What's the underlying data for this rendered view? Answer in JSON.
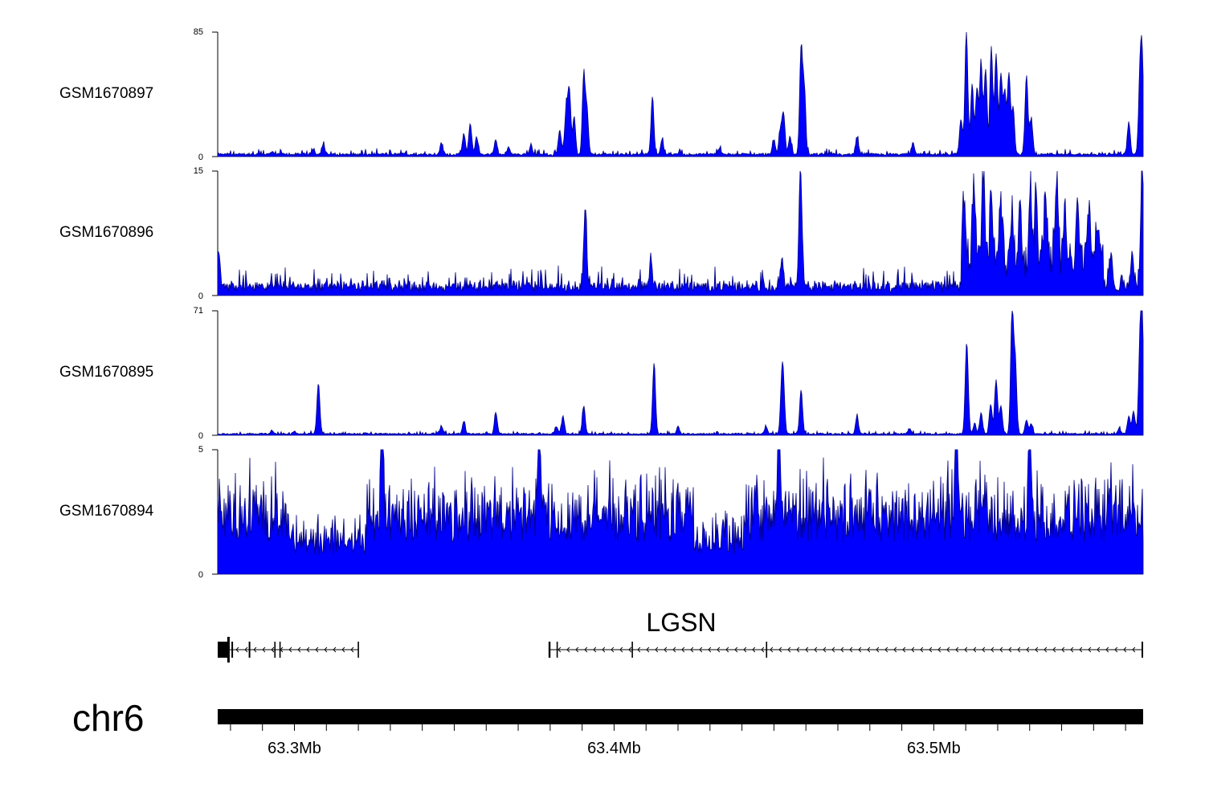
{
  "chart_data": {
    "type": "area",
    "chromosome": "chr6",
    "x_axis": {
      "range_mb": [
        63.276,
        63.5655
      ],
      "tick_labels": [
        {
          "value": 63.3,
          "label": "63.3Mb"
        },
        {
          "value": 63.4,
          "label": "63.4Mb"
        },
        {
          "value": 63.5,
          "label": "63.5Mb"
        }
      ],
      "minor_tick_step_mb": 0.01
    },
    "tracks": [
      {
        "name": "GSM1670897",
        "ylim": [
          0,
          85
        ],
        "ylim_labels": [
          "0",
          "85"
        ],
        "baseline": 1.5,
        "noise": 2,
        "peaks": [
          [
            63.293,
            1.5
          ],
          [
            63.306,
            4
          ],
          [
            63.309,
            7
          ],
          [
            63.346,
            8
          ],
          [
            63.353,
            14
          ],
          [
            63.355,
            21
          ],
          [
            63.357,
            12
          ],
          [
            63.363,
            10
          ],
          [
            63.367,
            5
          ],
          [
            63.374,
            6
          ],
          [
            63.383,
            17
          ],
          [
            63.385,
            30
          ],
          [
            63.386,
            44
          ],
          [
            63.3875,
            25
          ],
          [
            63.3905,
            53
          ],
          [
            63.3915,
            30
          ],
          [
            63.412,
            39
          ],
          [
            63.415,
            10
          ],
          [
            63.433,
            4
          ],
          [
            63.45,
            10
          ],
          [
            63.452,
            16
          ],
          [
            63.453,
            28
          ],
          [
            63.455,
            12
          ],
          [
            63.4585,
            72
          ],
          [
            63.4595,
            42
          ],
          [
            63.476,
            12
          ],
          [
            63.4935,
            8
          ],
          [
            63.5085,
            24
          ],
          [
            63.5102,
            84
          ],
          [
            63.512,
            48
          ],
          [
            63.5135,
            45
          ],
          [
            63.5148,
            62
          ],
          [
            63.5162,
            58
          ],
          [
            63.518,
            73
          ],
          [
            63.5195,
            68
          ],
          [
            63.521,
            54
          ],
          [
            63.5222,
            42
          ],
          [
            63.5235,
            55
          ],
          [
            63.5248,
            32
          ],
          [
            63.529,
            54
          ],
          [
            63.5305,
            25
          ],
          [
            63.561,
            22
          ],
          [
            63.5645,
            48
          ],
          [
            63.5652,
            60
          ]
        ]
      },
      {
        "name": "GSM1670896",
        "ylim": [
          0,
          15
        ],
        "ylim_labels": [
          "0",
          "15"
        ],
        "baseline": 1.1,
        "noise": 1.1,
        "peaks": [
          [
            63.2763,
            4.5
          ],
          [
            63.391,
            9.5
          ],
          [
            63.4115,
            3.5
          ],
          [
            63.4525,
            4
          ],
          [
            63.4583,
            14.5
          ],
          [
            63.5095,
            8
          ],
          [
            63.5125,
            10.5
          ],
          [
            63.5155,
            11.5
          ],
          [
            63.518,
            7
          ],
          [
            63.521,
            6
          ],
          [
            63.5245,
            6.5
          ],
          [
            63.527,
            7.5
          ],
          [
            63.5302,
            9.5
          ],
          [
            63.532,
            8
          ],
          [
            63.535,
            9
          ],
          [
            63.5385,
            10
          ],
          [
            63.541,
            8
          ],
          [
            63.545,
            7.5
          ],
          [
            63.5485,
            6.5
          ],
          [
            63.551,
            4
          ],
          [
            63.5555,
            3.5
          ],
          [
            63.562,
            4
          ],
          [
            63.5652,
            15
          ]
        ],
        "broad": [
          [
            63.5085,
            63.553,
            4.5
          ]
        ]
      },
      {
        "name": "GSM1670895",
        "ylim": [
          0,
          71
        ],
        "ylim_labels": [
          "0",
          "71"
        ],
        "baseline": 0.8,
        "noise": 0.9,
        "peaks": [
          [
            63.293,
            2
          ],
          [
            63.3,
            1.5
          ],
          [
            63.3075,
            29
          ],
          [
            63.346,
            4
          ],
          [
            63.353,
            7
          ],
          [
            63.363,
            12
          ],
          [
            63.382,
            4
          ],
          [
            63.384,
            10
          ],
          [
            63.3905,
            16
          ],
          [
            63.4125,
            40
          ],
          [
            63.42,
            4
          ],
          [
            63.4475,
            4
          ],
          [
            63.4525,
            28
          ],
          [
            63.453,
            20
          ],
          [
            63.4585,
            25
          ],
          [
            63.476,
            10
          ],
          [
            63.4925,
            3
          ],
          [
            63.5102,
            33
          ],
          [
            63.5105,
            22
          ],
          [
            63.5128,
            6
          ],
          [
            63.5148,
            12
          ],
          [
            63.5178,
            17
          ],
          [
            63.5195,
            31
          ],
          [
            63.521,
            16
          ],
          [
            63.5245,
            70
          ],
          [
            63.5255,
            40
          ],
          [
            63.529,
            8
          ],
          [
            63.5305,
            6
          ],
          [
            63.558,
            3
          ],
          [
            63.561,
            10
          ],
          [
            63.5625,
            13
          ],
          [
            63.5645,
            45
          ],
          [
            63.5652,
            60
          ]
        ]
      },
      {
        "name": "GSM1670894",
        "ylim": [
          0,
          5
        ],
        "ylim_labels": [
          "0",
          "5"
        ],
        "baseline": 1.3,
        "noise": 2.2,
        "spiky": true,
        "peaks": [
          [
            63.3275,
            4.3
          ],
          [
            63.3765,
            5
          ],
          [
            63.4515,
            4.5
          ],
          [
            63.507,
            4.6
          ],
          [
            63.53,
            4.5
          ]
        ]
      }
    ],
    "gene": {
      "name": "LGSN",
      "strand": "-",
      "segments_mb": [
        [
          63.276,
          63.32
        ],
        [
          63.3795,
          63.5655
        ]
      ],
      "exons_mb": [
        {
          "start": 63.276,
          "end": 63.2795,
          "thick": true
        },
        {
          "start": 63.2803,
          "end": 63.2808
        },
        {
          "start": 63.2857,
          "end": 63.2862
        },
        {
          "start": 63.2937,
          "end": 63.2941
        },
        {
          "start": 63.2953,
          "end": 63.2957
        },
        {
          "start": 63.3198,
          "end": 63.3202
        },
        {
          "start": 63.3795,
          "end": 63.3801
        },
        {
          "start": 63.382,
          "end": 63.3824
        },
        {
          "start": 63.4055,
          "end": 63.4059
        },
        {
          "start": 63.4475,
          "end": 63.4479
        },
        {
          "start": 63.565,
          "end": 63.5655
        }
      ]
    },
    "colors": {
      "signal": "#0000ff",
      "signal_edge": "#00007f",
      "axis": "#000000"
    }
  }
}
